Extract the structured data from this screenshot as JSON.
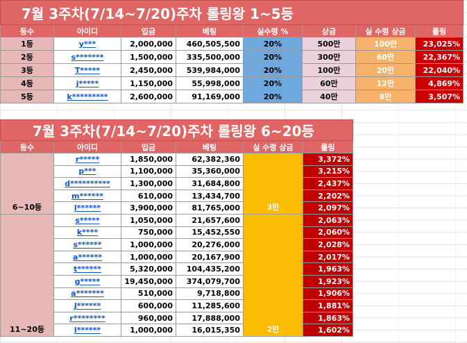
{
  "table1": {
    "title": "7월 3주차(7/14~7/20)주차 롤링왕 1~5등",
    "headers": [
      "등수",
      "아이디",
      "입금",
      "베팅",
      "실수령 %",
      "상금",
      "실 수령 상금",
      "롤링"
    ],
    "rows": [
      {
        "rank": "1등",
        "id": "y***",
        "deposit": "2,000,000",
        "bet": "460,505,500",
        "rate": "20%",
        "prize": "500만",
        "real": "100만",
        "rolling": "23,025%"
      },
      {
        "rank": "2등",
        "id": "s*******",
        "deposit": "1,500,000",
        "bet": "335,500,000",
        "rate": "20%",
        "prize": "300만",
        "real": "60만",
        "rolling": "22,367%"
      },
      {
        "rank": "3등",
        "id": "T*****",
        "deposit": "2,450,000",
        "bet": "539,984,000",
        "rate": "20%",
        "prize": "100만",
        "real": "20만",
        "rolling": "22,040%"
      },
      {
        "rank": "4등",
        "id": "j*****",
        "deposit": "1,150,000",
        "bet": "55,998,000",
        "rate": "20%",
        "prize": "60만",
        "real": "12만",
        "rolling": "4,869%"
      },
      {
        "rank": "5등",
        "id": "k*********",
        "deposit": "2,600,000",
        "bet": "91,169,000",
        "rate": "20%",
        "prize": "40만",
        "real": "8만",
        "rolling": "3,507%"
      }
    ]
  },
  "table2": {
    "title": "7월 3주차(7/14~7/20)주차 롤링왕 6~20등",
    "headers": [
      "등수",
      "아이디",
      "입금",
      "베팅",
      "실 수령 상금",
      "롤링"
    ],
    "group1": {
      "rank": "6~10등",
      "real": "3만"
    },
    "group2": {
      "rank": "11~20등",
      "real": "2만"
    },
    "rows": [
      {
        "id": "r*****",
        "deposit": "1,850,000",
        "bet": "62,382,360",
        "rolling": "3,372%"
      },
      {
        "id": "p***",
        "deposit": "1,100,000",
        "bet": "35,360,000",
        "rolling": "3,215%"
      },
      {
        "id": "d**********",
        "deposit": "1,300,000",
        "bet": "31,684,800",
        "rolling": "2,437%"
      },
      {
        "id": "m******",
        "deposit": "610,000",
        "bet": "13,434,700",
        "rolling": "2,202%"
      },
      {
        "id": "l******",
        "deposit": "3,900,000",
        "bet": "81,765,000",
        "rolling": "2,097%"
      },
      {
        "id": "s*****",
        "deposit": "1,050,000",
        "bet": "21,657,600",
        "rolling": "2,063%"
      },
      {
        "id": "k****",
        "deposit": "750,000",
        "bet": "15,452,550",
        "rolling": "2,060%"
      },
      {
        "id": "s******",
        "deposit": "1,000,000",
        "bet": "20,276,000",
        "rolling": "2,028%"
      },
      {
        "id": "a******",
        "deposit": "1,000,000",
        "bet": "20,167,900",
        "rolling": "2,017%"
      },
      {
        "id": "t******",
        "deposit": "5,320,000",
        "bet": "104,435,200",
        "rolling": "1,963%"
      },
      {
        "id": "g*****",
        "deposit": "19,450,000",
        "bet": "374,079,700",
        "rolling": "1,923%"
      },
      {
        "id": "a*******",
        "deposit": "510,000",
        "bet": "9,718,800",
        "rolling": "1,906%"
      },
      {
        "id": "J******",
        "deposit": "600,000",
        "bet": "11,285,600",
        "rolling": "1,881%"
      },
      {
        "id": "r********",
        "deposit": "960,000",
        "bet": "17,888,000",
        "rolling": "1,863%"
      },
      {
        "id": "l******",
        "deposit": "1,000,000",
        "bet": "16,015,350",
        "rolling": "1,602%"
      }
    ]
  }
}
